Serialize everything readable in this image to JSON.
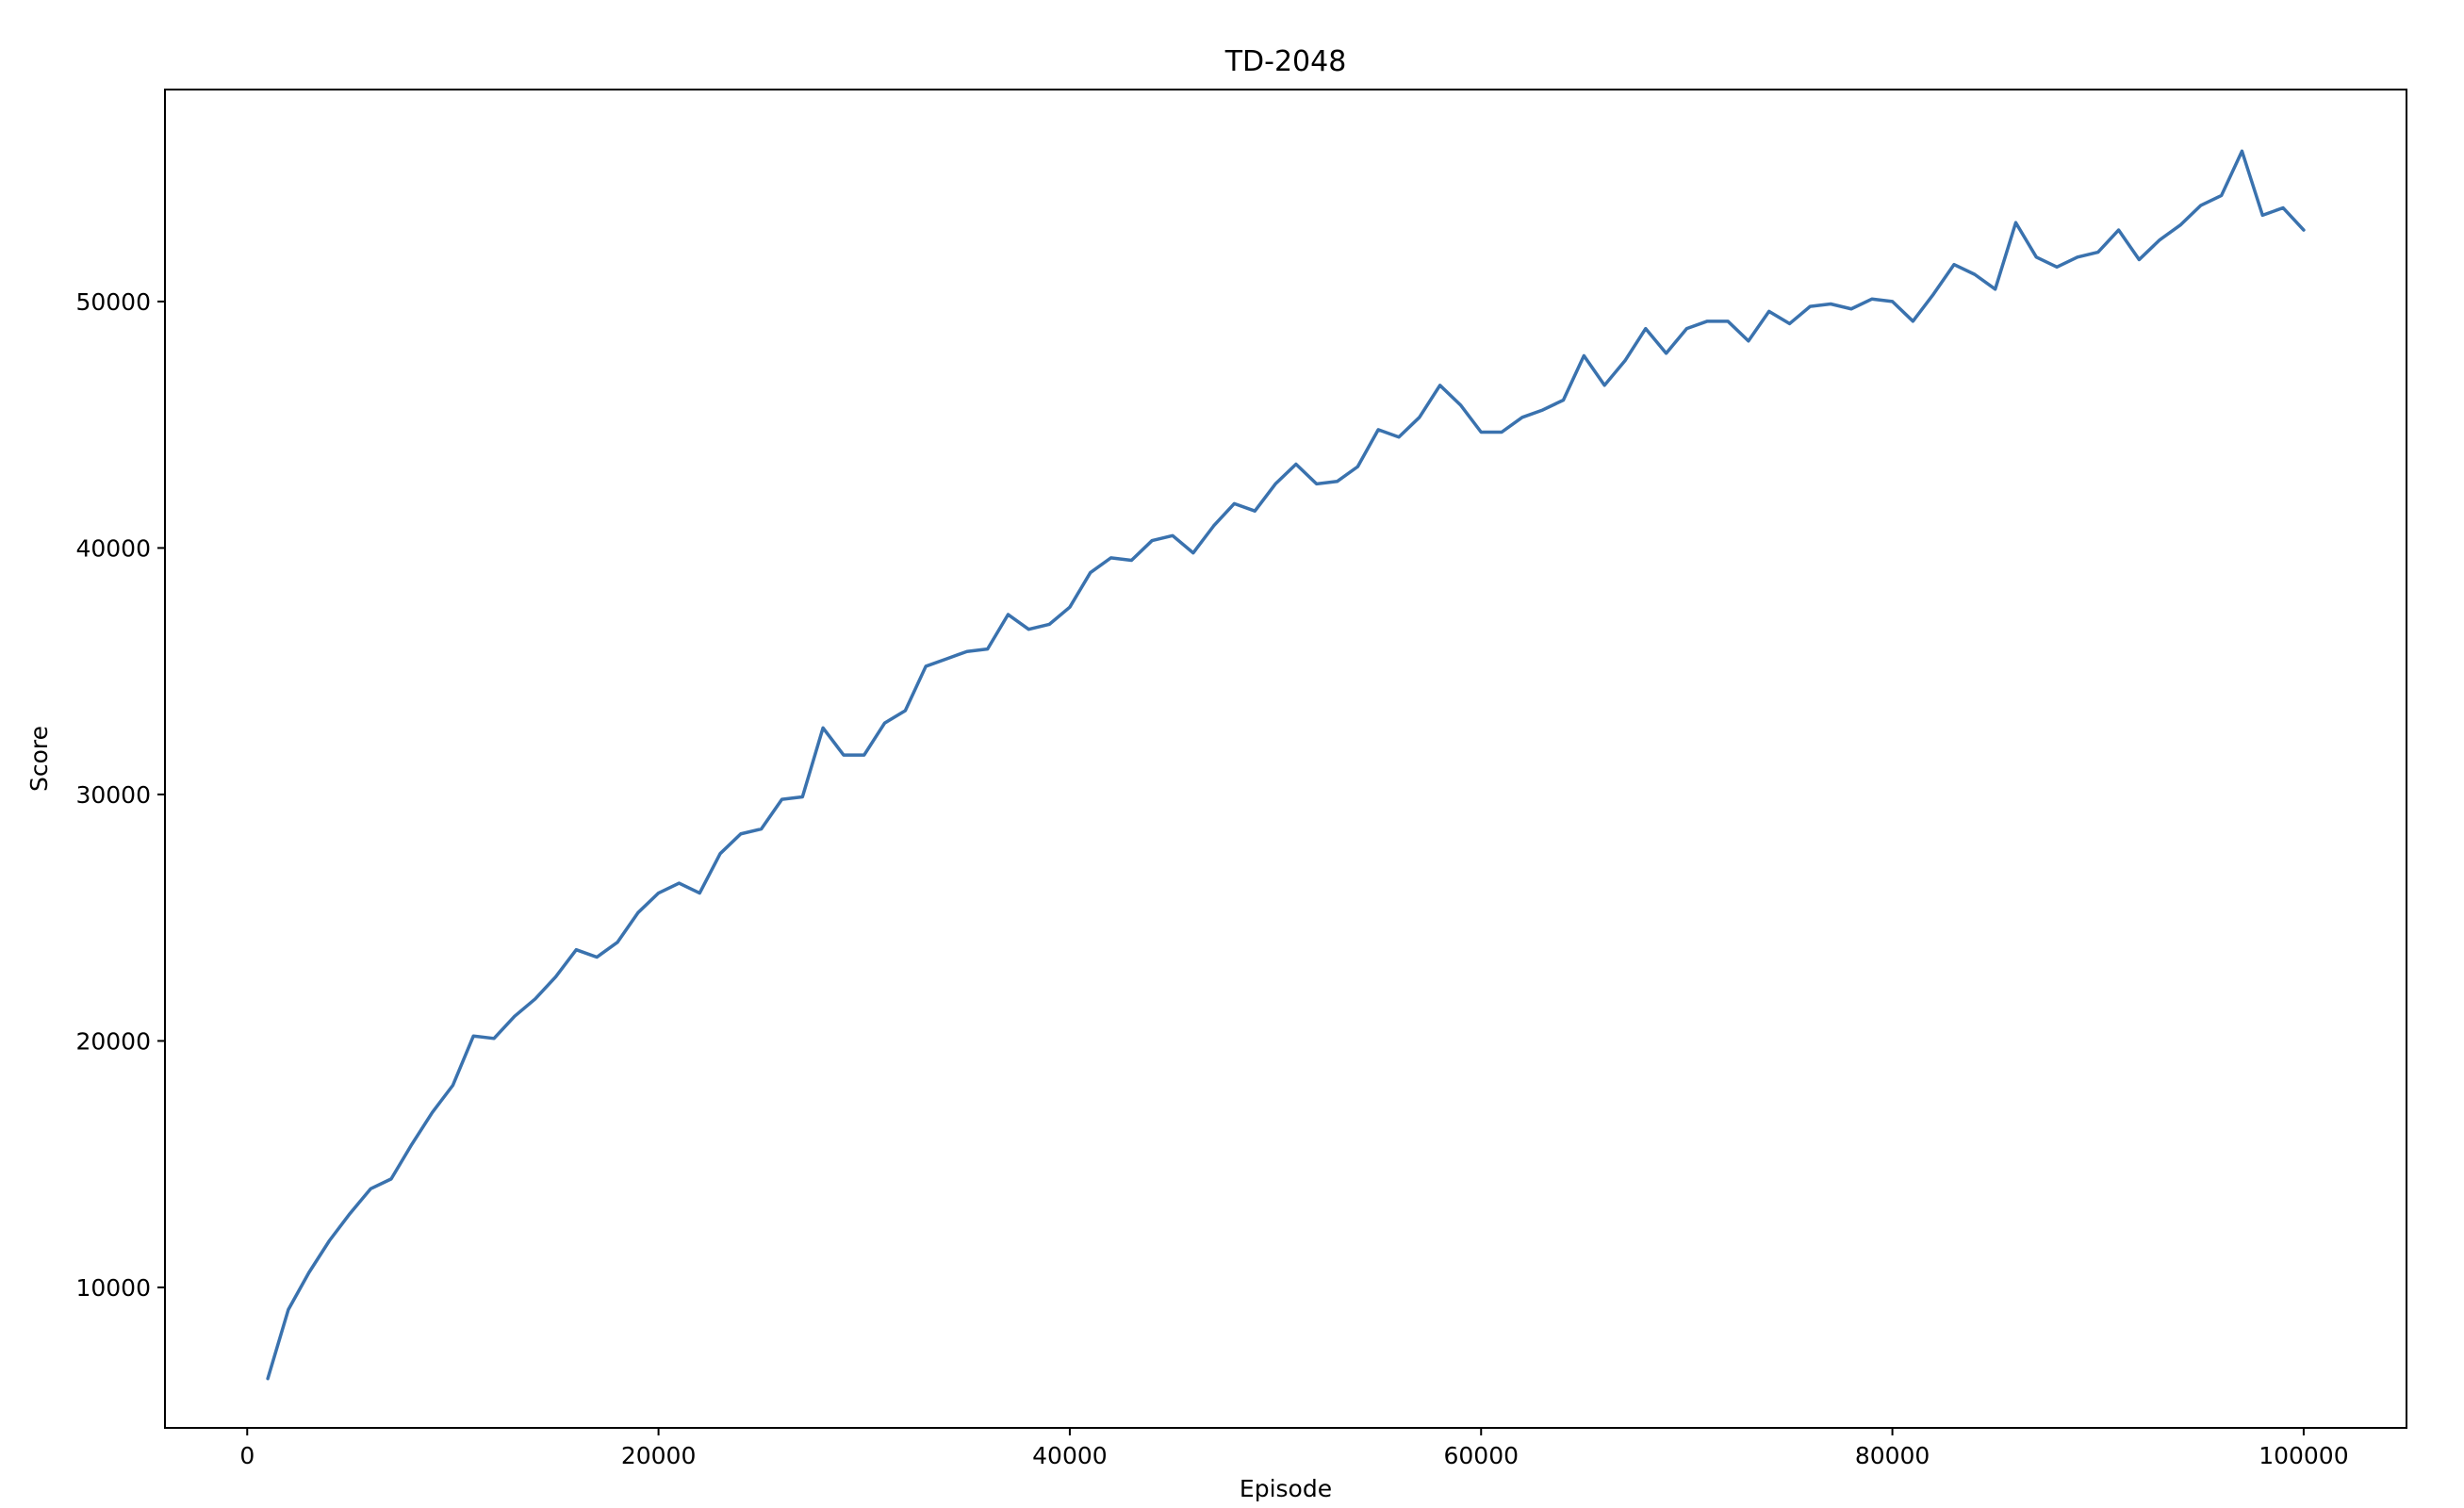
{
  "chart_data": {
    "type": "line",
    "title": "TD-2048",
    "xlabel": "Episode",
    "ylabel": "Score",
    "xlim": [
      -4000,
      105000
    ],
    "ylim": [
      4300,
      58600
    ],
    "x_ticks": [
      0,
      20000,
      40000,
      60000,
      80000,
      100000
    ],
    "y_ticks": [
      10000,
      20000,
      30000,
      40000,
      50000
    ],
    "grid": false,
    "legend": "none",
    "line_color": "#3a72ae",
    "series": [
      {
        "x": [
          1000,
          2000,
          3000,
          4000,
          5000,
          6000,
          7000,
          8000,
          9000,
          10000,
          11000,
          12000,
          13000,
          14000,
          15000,
          16000,
          17000,
          18000,
          19000,
          20000,
          21000,
          22000,
          23000,
          24000,
          25000,
          26000,
          27000,
          28000,
          29000,
          30000,
          31000,
          32000,
          33000,
          34000,
          35000,
          36000,
          37000,
          38000,
          39000,
          40000,
          41000,
          42000,
          43000,
          44000,
          45000,
          46000,
          47000,
          48000,
          49000,
          50000,
          51000,
          52000,
          53000,
          54000,
          55000,
          56000,
          57000,
          58000,
          59000,
          60000,
          61000,
          62000,
          63000,
          64000,
          65000,
          66000,
          67000,
          68000,
          69000,
          70000,
          71000,
          72000,
          73000,
          74000,
          75000,
          76000,
          77000,
          78000,
          79000,
          80000,
          81000,
          82000,
          83000,
          84000,
          85000,
          86000,
          87000,
          88000,
          89000,
          90000,
          91000,
          92000,
          93000,
          94000,
          95000,
          96000,
          97000,
          98000,
          99000,
          100000
        ],
        "y": [
          6300,
          9100,
          10600,
          11900,
          13000,
          14000,
          14400,
          15800,
          17100,
          18200,
          20200,
          20100,
          21000,
          21700,
          22600,
          23700,
          23400,
          24000,
          25200,
          26000,
          26400,
          26000,
          27600,
          28400,
          28600,
          29800,
          29900,
          32700,
          31600,
          31600,
          32900,
          33400,
          35200,
          35500,
          35800,
          35900,
          37300,
          36700,
          36900,
          37600,
          39000,
          39600,
          39500,
          40300,
          40500,
          39800,
          40900,
          41800,
          41500,
          42600,
          43400,
          42600,
          42700,
          43300,
          44800,
          44500,
          45300,
          46600,
          45800,
          44700,
          44700,
          45300,
          45600,
          46000,
          47800,
          46600,
          47600,
          48900,
          47900,
          48900,
          49200,
          49200,
          48400,
          49600,
          49100,
          49800,
          49900,
          49700,
          50100,
          50000,
          49200,
          50300,
          51500,
          51100,
          50500,
          53200,
          51800,
          51400,
          51800,
          52000,
          52900,
          51700,
          52500,
          53100,
          53900,
          54300,
          56100,
          53500,
          53800,
          52900
        ]
      }
    ]
  }
}
